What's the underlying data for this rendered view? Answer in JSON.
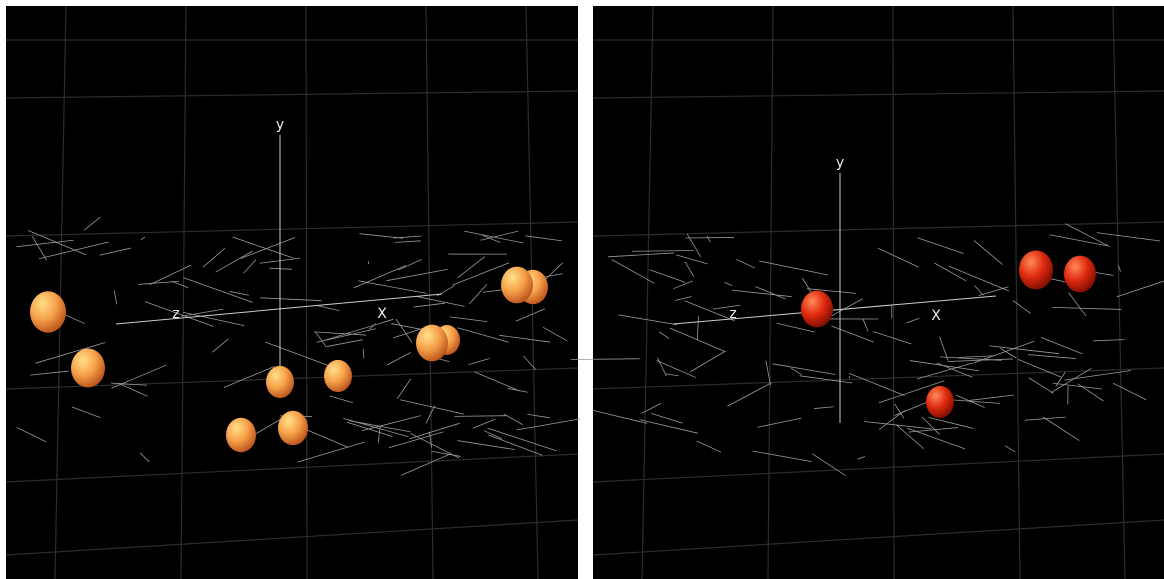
{
  "panels": [
    {
      "axis_labels": {
        "y": "y",
        "z": "z",
        "x": "X"
      }
    },
    {
      "axis_labels": {
        "y": "y",
        "z": "z",
        "x": "X"
      }
    }
  ]
}
